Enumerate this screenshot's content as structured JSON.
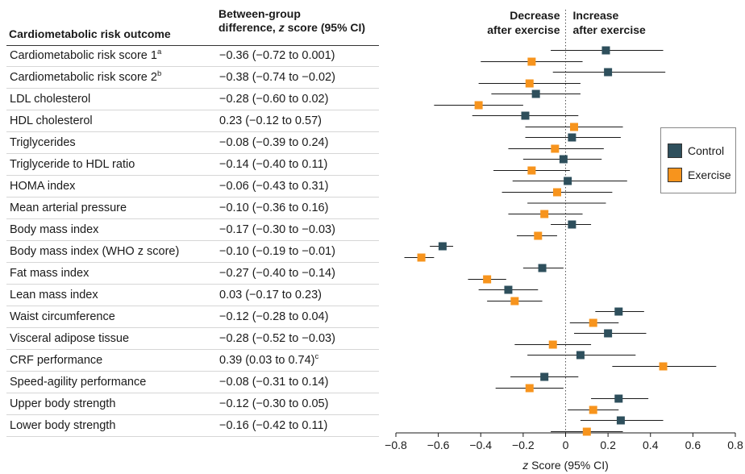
{
  "table": {
    "header_outcome": "Cardiometabolic risk outcome",
    "header_diff_1": "Between-group",
    "header_diff_2a": "difference, ",
    "header_diff_2b": "z",
    "header_diff_2c": " score (95% CI)",
    "rows": [
      {
        "outcome": "Cardiometabolic risk score 1",
        "sup": "a",
        "diff": "−0.36 (−0.72 to 0.001)",
        "diff_sup": ""
      },
      {
        "outcome": "Cardiometabolic risk score 2",
        "sup": "b",
        "diff": "−0.38 (−0.74 to −0.02)",
        "diff_sup": ""
      },
      {
        "outcome": "LDL cholesterol",
        "sup": "",
        "diff": "−0.28 (−0.60 to 0.02)",
        "diff_sup": ""
      },
      {
        "outcome": "HDL cholesterol",
        "sup": "",
        "diff": "0.23 (−0.12 to 0.57)",
        "diff_sup": ""
      },
      {
        "outcome": "Triglycerides",
        "sup": "",
        "diff": "−0.08 (−0.39 to 0.24)",
        "diff_sup": ""
      },
      {
        "outcome": "Triglyceride to HDL ratio",
        "sup": "",
        "diff": "−0.14 (−0.40 to 0.11)",
        "diff_sup": ""
      },
      {
        "outcome": "HOMA index",
        "sup": "",
        "diff": "−0.06 (−0.43 to 0.31)",
        "diff_sup": ""
      },
      {
        "outcome": "Mean arterial pressure",
        "sup": "",
        "diff": "−0.10 (−0.36 to 0.16)",
        "diff_sup": ""
      },
      {
        "outcome": "Body mass index",
        "sup": "",
        "diff": "−0.17 (−0.30 to −0.03)",
        "diff_sup": ""
      },
      {
        "outcome": "Body mass index (WHO z score)",
        "sup": "",
        "diff": "−0.10 (−0.19 to −0.01)",
        "diff_sup": ""
      },
      {
        "outcome": "Fat mass index",
        "sup": "",
        "diff": "−0.27 (−0.40 to −0.14)",
        "diff_sup": ""
      },
      {
        "outcome": "Lean mass index",
        "sup": "",
        "diff": "0.03 (−0.17 to 0.23)",
        "diff_sup": ""
      },
      {
        "outcome": "Waist circumference",
        "sup": "",
        "diff": "−0.12 (−0.28 to 0.04)",
        "diff_sup": ""
      },
      {
        "outcome": "Visceral adipose tissue",
        "sup": "",
        "diff": "−0.28 (−0.52 to −0.03)",
        "diff_sup": ""
      },
      {
        "outcome": "CRF performance",
        "sup": "",
        "diff": "0.39 (0.03 to 0.74)",
        "diff_sup": "c"
      },
      {
        "outcome": "Speed-agility performance",
        "sup": "",
        "diff": "−0.08 (−0.31 to 0.14)",
        "diff_sup": ""
      },
      {
        "outcome": "Upper body strength",
        "sup": "",
        "diff": "−0.12 (−0.30 to 0.05)",
        "diff_sup": ""
      },
      {
        "outcome": "Lower body strength",
        "sup": "",
        "diff": "−0.16 (−0.42 to 0.11)",
        "diff_sup": ""
      }
    ]
  },
  "chart_data": {
    "type": "scatter",
    "subtype": "forest-plot",
    "xlabel_italic": "z",
    "xlabel_rest": " Score (95% CI)",
    "xlim": [
      -0.8,
      0.8
    ],
    "xticks": [
      "−0.8",
      "−0.6",
      "−0.4",
      "−0.2",
      "0",
      "0.2",
      "0.4",
      "0.6",
      "0.8"
    ],
    "xtick_values": [
      -0.8,
      -0.6,
      -0.4,
      -0.2,
      0,
      0.2,
      0.4,
      0.6,
      0.8
    ],
    "reference_line": 0,
    "annotation_left": [
      "Decrease",
      "after exercise"
    ],
    "annotation_right": [
      "Increase",
      "after exercise"
    ],
    "legend_placement": "right",
    "series": [
      {
        "name": "Control",
        "color": "#2e4f5c",
        "points": [
          {
            "est": 0.19,
            "lo": -0.07,
            "hi": 0.46
          },
          {
            "est": 0.2,
            "lo": -0.06,
            "hi": 0.47
          },
          {
            "est": -0.14,
            "lo": -0.35,
            "hi": 0.07
          },
          {
            "est": -0.19,
            "lo": -0.44,
            "hi": 0.06
          },
          {
            "est": 0.03,
            "lo": -0.19,
            "hi": 0.26
          },
          {
            "est": -0.01,
            "lo": -0.2,
            "hi": 0.17
          },
          {
            "est": 0.01,
            "lo": -0.25,
            "hi": 0.29
          },
          {
            "est": null,
            "lo": null,
            "hi": null
          },
          {
            "est": 0.03,
            "lo": -0.07,
            "hi": 0.12
          },
          {
            "est": -0.58,
            "lo": -0.64,
            "hi": -0.53
          },
          {
            "est": -0.11,
            "lo": -0.2,
            "hi": -0.01
          },
          {
            "est": -0.27,
            "lo": -0.41,
            "hi": -0.13
          },
          {
            "est": 0.25,
            "lo": 0.14,
            "hi": 0.37
          },
          {
            "est": 0.2,
            "lo": 0.04,
            "hi": 0.38
          },
          {
            "est": 0.07,
            "lo": -0.18,
            "hi": 0.33
          },
          {
            "est": -0.1,
            "lo": -0.26,
            "hi": 0.06
          },
          {
            "est": 0.25,
            "lo": 0.12,
            "hi": 0.39
          },
          {
            "est": 0.26,
            "lo": 0.07,
            "hi": 0.46
          }
        ]
      },
      {
        "name": "Exercise",
        "color": "#f7941d",
        "points": [
          {
            "est": -0.16,
            "lo": -0.4,
            "hi": 0.08
          },
          {
            "est": -0.17,
            "lo": -0.41,
            "hi": 0.07
          },
          {
            "est": -0.41,
            "lo": -0.62,
            "hi": -0.2
          },
          {
            "est": 0.04,
            "lo": -0.19,
            "hi": 0.27
          },
          {
            "est": -0.05,
            "lo": -0.27,
            "hi": 0.18
          },
          {
            "est": -0.16,
            "lo": -0.34,
            "hi": 0.02
          },
          {
            "est": -0.04,
            "lo": -0.3,
            "hi": 0.22
          },
          {
            "est": -0.1,
            "lo": -0.27,
            "hi": 0.08
          },
          {
            "est": -0.13,
            "lo": -0.23,
            "hi": -0.04
          },
          {
            "est": -0.68,
            "lo": -0.76,
            "hi": -0.62
          },
          {
            "est": -0.37,
            "lo": -0.46,
            "hi": -0.28
          },
          {
            "est": -0.24,
            "lo": -0.37,
            "hi": -0.11
          },
          {
            "est": 0.13,
            "lo": 0.02,
            "hi": 0.25
          },
          {
            "est": -0.06,
            "lo": -0.24,
            "hi": 0.12
          },
          {
            "est": 0.46,
            "lo": 0.22,
            "hi": 0.71
          },
          {
            "est": -0.17,
            "lo": -0.33,
            "hi": -0.01
          },
          {
            "est": 0.13,
            "lo": 0.01,
            "hi": 0.25
          },
          {
            "est": 0.1,
            "lo": -0.07,
            "hi": 0.27
          }
        ]
      }
    ],
    "mean_arterial_pressure_control_ci": {
      "lo": -0.18,
      "hi": 0.19
    }
  }
}
